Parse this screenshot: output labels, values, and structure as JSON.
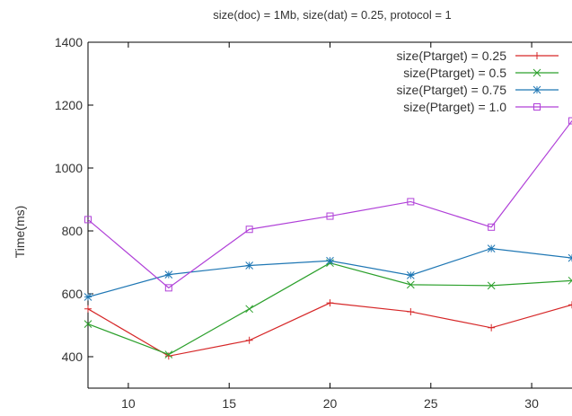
{
  "chart_data": {
    "type": "line",
    "title": "size(doc) = 1Mb, size(dat) = 0.25, protocol = 1",
    "xlabel": "",
    "ylabel": "Time(ms)",
    "xlim": [
      8,
      32
    ],
    "ylim": [
      300,
      1400
    ],
    "x_ticks": [
      10,
      15,
      20,
      25,
      30
    ],
    "y_ticks": [
      400,
      600,
      800,
      1000,
      1200,
      1400
    ],
    "grid": false,
    "legend_position": "top-right",
    "x": [
      8,
      12,
      16,
      20,
      24,
      28,
      32
    ],
    "series": [
      {
        "name": "size(Ptarget) = 0.25",
        "color": "#d62728",
        "marker": "plus",
        "values": [
          552,
          402,
          452,
          571,
          543,
          492,
          565
        ]
      },
      {
        "name": "size(Ptarget) = 0.5",
        "color": "#2ca02c",
        "marker": "cross",
        "values": [
          504,
          407,
          552,
          698,
          629,
          626,
          642
        ]
      },
      {
        "name": "size(Ptarget) = 0.75",
        "color": "#1f77b4",
        "marker": "star",
        "values": [
          590,
          661,
          690,
          705,
          659,
          744,
          714
        ]
      },
      {
        "name": "size(Ptarget) = 1.0",
        "color": "#b040d8",
        "marker": "square",
        "values": [
          836,
          619,
          805,
          847,
          893,
          812,
          1150
        ]
      }
    ]
  }
}
